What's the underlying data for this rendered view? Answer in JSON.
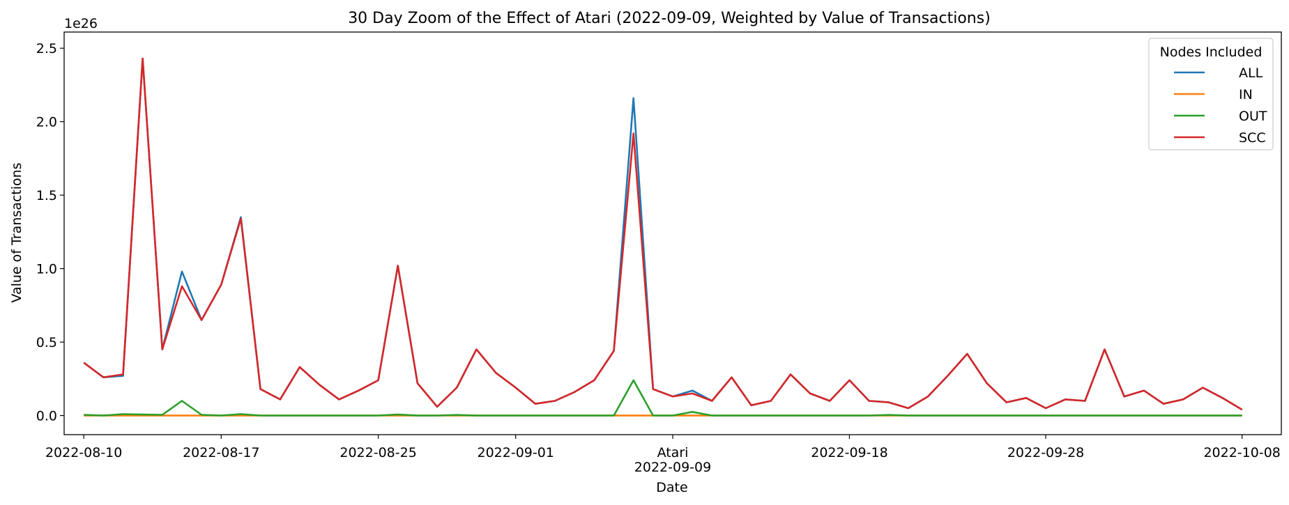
{
  "chart_data": {
    "type": "line",
    "title": "30 Day Zoom of the Effect of Atari (2022-09-09, Weighted by Value of Transactions)",
    "xlabel": "Date",
    "ylabel": "Value of Transactions",
    "y_offset_label": "1e26",
    "y_scale": 1e+26,
    "ylim": [
      -0.13,
      2.61
    ],
    "y_ticks": [
      {
        "value": 0.0,
        "label": "0.0"
      },
      {
        "value": 0.5,
        "label": "0.5"
      },
      {
        "value": 1.0,
        "label": "1.0"
      },
      {
        "value": 1.5,
        "label": "1.5"
      },
      {
        "value": 2.0,
        "label": "2.0"
      },
      {
        "value": 2.5,
        "label": "2.5"
      }
    ],
    "xlim": [
      "2022-08-09T00:00",
      "2022-10-10T00:00"
    ],
    "x_ticks": [
      {
        "date": "2022-08-10",
        "label": "2022-08-10"
      },
      {
        "date": "2022-08-17",
        "label": "2022-08-17"
      },
      {
        "date": "2022-08-25",
        "label": "2022-08-25"
      },
      {
        "date": "2022-09-01",
        "label": "2022-09-01"
      },
      {
        "date": "2022-09-09",
        "label": "2022-09-09"
      },
      {
        "date": "2022-09-18",
        "label": "2022-09-18"
      },
      {
        "date": "2022-09-28",
        "label": "2022-09-28"
      },
      {
        "date": "2022-10-08",
        "label": "2022-10-08"
      }
    ],
    "event_marker": {
      "date": "2022-09-09",
      "label": "Atari"
    },
    "legend": {
      "title": "Nodes Included",
      "position": "top-right"
    },
    "grid": false,
    "x": [
      "2022-08-10",
      "2022-08-11",
      "2022-08-12",
      "2022-08-13",
      "2022-08-14",
      "2022-08-15",
      "2022-08-16",
      "2022-08-17",
      "2022-08-18",
      "2022-08-19",
      "2022-08-20",
      "2022-08-21",
      "2022-08-22",
      "2022-08-23",
      "2022-08-24",
      "2022-08-25",
      "2022-08-26",
      "2022-08-27",
      "2022-08-28",
      "2022-08-29",
      "2022-08-30",
      "2022-08-31",
      "2022-09-01",
      "2022-09-02",
      "2022-09-03",
      "2022-09-04",
      "2022-09-05",
      "2022-09-06",
      "2022-09-07",
      "2022-09-08",
      "2022-09-09",
      "2022-09-10",
      "2022-09-11",
      "2022-09-12",
      "2022-09-13",
      "2022-09-14",
      "2022-09-15",
      "2022-09-16",
      "2022-09-17",
      "2022-09-18",
      "2022-09-19",
      "2022-09-20",
      "2022-09-21",
      "2022-09-22",
      "2022-09-23",
      "2022-09-24",
      "2022-09-25",
      "2022-09-26",
      "2022-09-27",
      "2022-09-28",
      "2022-09-29",
      "2022-09-30",
      "2022-10-01",
      "2022-10-02",
      "2022-10-03",
      "2022-10-04",
      "2022-10-05",
      "2022-10-06",
      "2022-10-07",
      "2022-10-08"
    ],
    "series": [
      {
        "name": "ALL",
        "color": "#1f77b4",
        "values": [
          0.36,
          0.26,
          0.27,
          2.43,
          0.45,
          0.98,
          0.65,
          0.89,
          1.35,
          0.18,
          0.11,
          0.33,
          0.21,
          0.11,
          0.17,
          0.24,
          1.02,
          0.22,
          0.06,
          0.19,
          0.45,
          0.29,
          0.19,
          0.08,
          0.1,
          0.16,
          0.24,
          0.44,
          2.16,
          0.18,
          0.13,
          0.17,
          0.1,
          0.26,
          0.07,
          0.1,
          0.28,
          0.15,
          0.1,
          0.24,
          0.1,
          0.09,
          0.05,
          0.13,
          0.27,
          0.42,
          0.22,
          0.09,
          0.12,
          0.05,
          0.11,
          0.1,
          0.45,
          0.13,
          0.17,
          0.08,
          0.11,
          0.19,
          0.12,
          0.04
        ]
      },
      {
        "name": "IN",
        "color": "#ff7f0e",
        "values": [
          0.0,
          0.0,
          0.0,
          0.0,
          0.0,
          0.0,
          0.0,
          0.0,
          0.0,
          0.0,
          0.0,
          0.0,
          0.0,
          0.0,
          0.0,
          0.0,
          0.0,
          0.0,
          0.0,
          0.0,
          0.0,
          0.0,
          0.0,
          0.0,
          0.0,
          0.0,
          0.0,
          0.0,
          0.0,
          0.0,
          0.0,
          0.0,
          0.0,
          0.0,
          0.0,
          0.0,
          0.0,
          0.0,
          0.0,
          0.0,
          0.0,
          0.0,
          0.0,
          0.0,
          0.0,
          0.0,
          0.0,
          0.0,
          0.0,
          0.0,
          0.0,
          0.0,
          0.0,
          0.0,
          0.0,
          0.0,
          0.0,
          0.0,
          0.0,
          0.0
        ]
      },
      {
        "name": "OUT",
        "color": "#2ca02c",
        "values": [
          0.005,
          0.0,
          0.01,
          0.007,
          0.005,
          0.1,
          0.005,
          0.0,
          0.01,
          0.0,
          0.0,
          0.0,
          0.0,
          0.0,
          0.0,
          0.0,
          0.007,
          0.0,
          0.0,
          0.004,
          0.0,
          0.0,
          0.0,
          0.0,
          0.0,
          0.0,
          0.0,
          0.0,
          0.24,
          0.0,
          0.0,
          0.025,
          0.0,
          0.0,
          0.0,
          0.0,
          0.0,
          0.0,
          0.0,
          0.0,
          0.0,
          0.004,
          0.0,
          0.0,
          0.0,
          0.0,
          0.0,
          0.0,
          0.0,
          0.0,
          0.0,
          0.0,
          0.0,
          0.0,
          0.0,
          0.0,
          0.0,
          0.0,
          0.0,
          0.0
        ]
      },
      {
        "name": "SCC",
        "color": "#d62728",
        "values": [
          0.36,
          0.26,
          0.28,
          2.43,
          0.45,
          0.88,
          0.65,
          0.89,
          1.34,
          0.18,
          0.11,
          0.33,
          0.21,
          0.11,
          0.17,
          0.24,
          1.02,
          0.22,
          0.06,
          0.19,
          0.45,
          0.29,
          0.19,
          0.08,
          0.1,
          0.16,
          0.24,
          0.44,
          1.92,
          0.18,
          0.13,
          0.15,
          0.1,
          0.26,
          0.07,
          0.1,
          0.28,
          0.15,
          0.1,
          0.24,
          0.1,
          0.09,
          0.05,
          0.13,
          0.27,
          0.42,
          0.22,
          0.09,
          0.12,
          0.05,
          0.11,
          0.1,
          0.45,
          0.13,
          0.17,
          0.08,
          0.11,
          0.19,
          0.12,
          0.04
        ]
      }
    ]
  }
}
